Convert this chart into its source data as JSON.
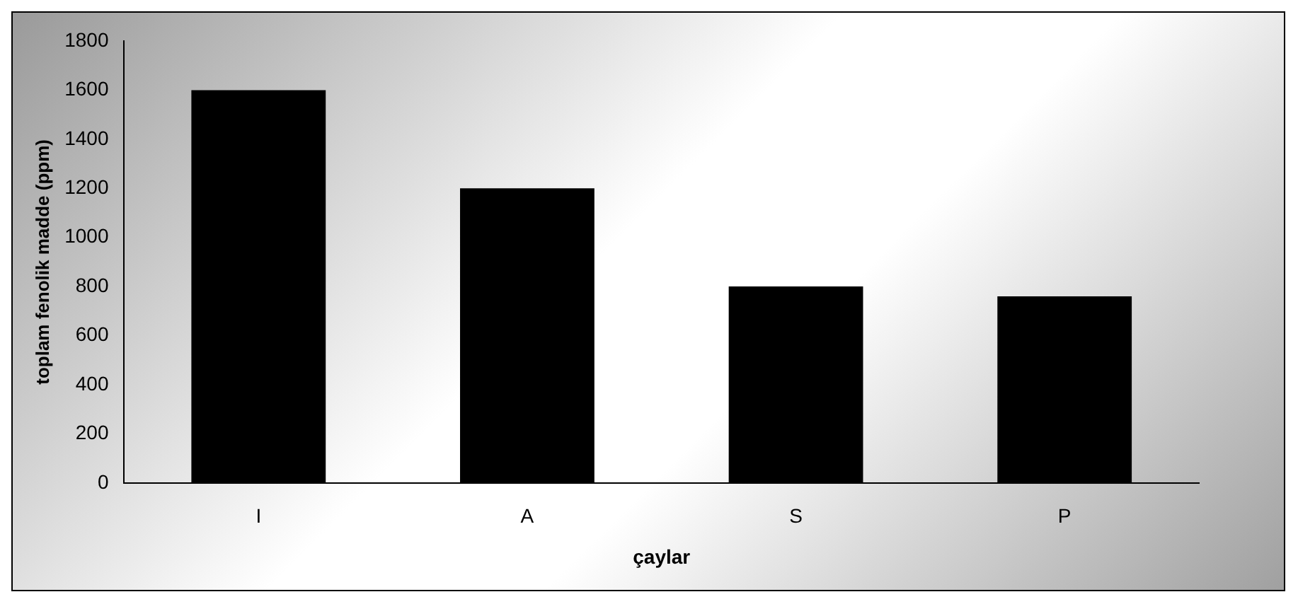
{
  "chart_data": {
    "type": "bar",
    "xlabel": "çaylar",
    "ylabel": "toplam fenolik madde (ppm)",
    "categories": [
      "I",
      "A",
      "S",
      "P"
    ],
    "values": [
      1600,
      1200,
      800,
      760
    ],
    "color": "#000000",
    "ylim": [
      0,
      1800
    ],
    "yticks": [
      0,
      200,
      400,
      600,
      800,
      1000,
      1200,
      1400,
      1600,
      1800
    ],
    "grid": false,
    "legend": false
  }
}
